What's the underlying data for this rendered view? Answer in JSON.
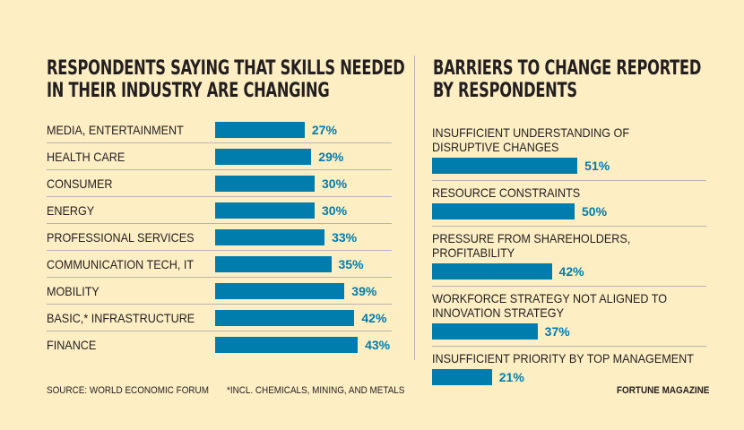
{
  "colors": {
    "background": "#fdeec4",
    "bar": "#007cad",
    "text": "#231f20"
  },
  "chart_data": [
    {
      "type": "bar",
      "orientation": "horizontal",
      "title": "RESPONDENTS SAYING THAT SKILLS NEEDED IN THEIR INDUSTRY ARE CHANGING",
      "categories": [
        "MEDIA, ENTERTAINMENT",
        "HEALTH CARE",
        "CONSUMER",
        "ENERGY",
        "PROFESSIONAL SERVICES",
        "COMMUNICATION TECH, IT",
        "MOBILITY",
        "BASIC,* INFRASTRUCTURE",
        "FINANCE"
      ],
      "values": [
        27,
        29,
        30,
        30,
        33,
        35,
        39,
        42,
        43
      ],
      "labels": [
        "27%",
        "29%",
        "30%",
        "30%",
        "33%",
        "35%",
        "39%",
        "42%",
        "43%"
      ]
    },
    {
      "type": "bar",
      "orientation": "horizontal",
      "title": "BARRIERS TO CHANGE REPORTED BY RESPONDENTS",
      "categories": [
        "INSUFFICIENT UNDERSTANDING OF\nDISRUPTIVE CHANGES",
        "RESOURCE CONSTRAINTS",
        "PRESSURE FROM SHAREHOLDERS, PROFITABILITY",
        "WORKFORCE STRATEGY NOT ALIGNED TO\nINNOVATION STRATEGY",
        "INSUFFICIENT PRIORITY BY TOP MANAGEMENT"
      ],
      "values": [
        51,
        50,
        42,
        37,
        21
      ],
      "labels": [
        "51%",
        "50%",
        "42%",
        "37%",
        "21%"
      ]
    }
  ],
  "titles": {
    "left": "RESPONDENTS SAYING THAT SKILLS NEEDED\nIN THEIR INDUSTRY ARE CHANGING",
    "right": "BARRIERS TO CHANGE REPORTED\nBY RESPONDENTS"
  },
  "footer": {
    "source": "SOURCE: WORLD ECONOMIC FORUM",
    "note": "*INCL. CHEMICALS, MINING, AND METALS",
    "brand": "FORTUNE MAGAZINE"
  }
}
